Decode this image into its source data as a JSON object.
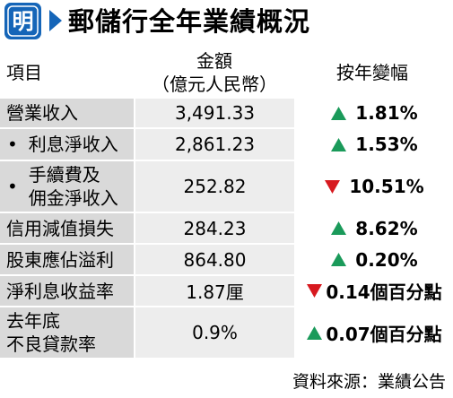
{
  "header": {
    "logo_char": "明",
    "title": "郵儲行全年業績概況"
  },
  "columns": {
    "item": "項目",
    "amount_line1": "金額",
    "amount_line2": "（億元人民幣）",
    "change": "按年變幅"
  },
  "rows": [
    {
      "item_lines": [
        "營業收入"
      ],
      "bullet": false,
      "amount": "3,491.33",
      "direction": "up",
      "change": "1.81%"
    },
    {
      "item_lines": [
        "利息淨收入"
      ],
      "bullet": true,
      "amount": "2,861.23",
      "direction": "up",
      "change": "1.53%"
    },
    {
      "item_lines": [
        "手續費及",
        "佣金淨收入"
      ],
      "bullet": true,
      "amount": "252.82",
      "direction": "down",
      "change": "10.51%"
    },
    {
      "item_lines": [
        "信用減值損失"
      ],
      "bullet": false,
      "amount": "284.23",
      "direction": "up",
      "change": "8.62%"
    },
    {
      "item_lines": [
        "股東應佔溢利"
      ],
      "bullet": false,
      "amount": "864.80",
      "direction": "up",
      "change": "0.20%"
    },
    {
      "item_lines": [
        "淨利息收益率"
      ],
      "bullet": false,
      "amount": "1.87厘",
      "direction": "down",
      "change": "0.14個百分點"
    },
    {
      "item_lines": [
        "去年底",
        "不良貸款率"
      ],
      "bullet": false,
      "amount": "0.9%",
      "direction": "up",
      "change": "0.07個百分點"
    }
  ],
  "bullet_char": "•",
  "source": "資料來源：業績公告",
  "colors": {
    "logo_blue": "#1565b8",
    "up_green": "#1a9a5a",
    "down_red": "#d7191f",
    "item_bg": "#d9d9d9",
    "amount_bg": "#ededed"
  }
}
